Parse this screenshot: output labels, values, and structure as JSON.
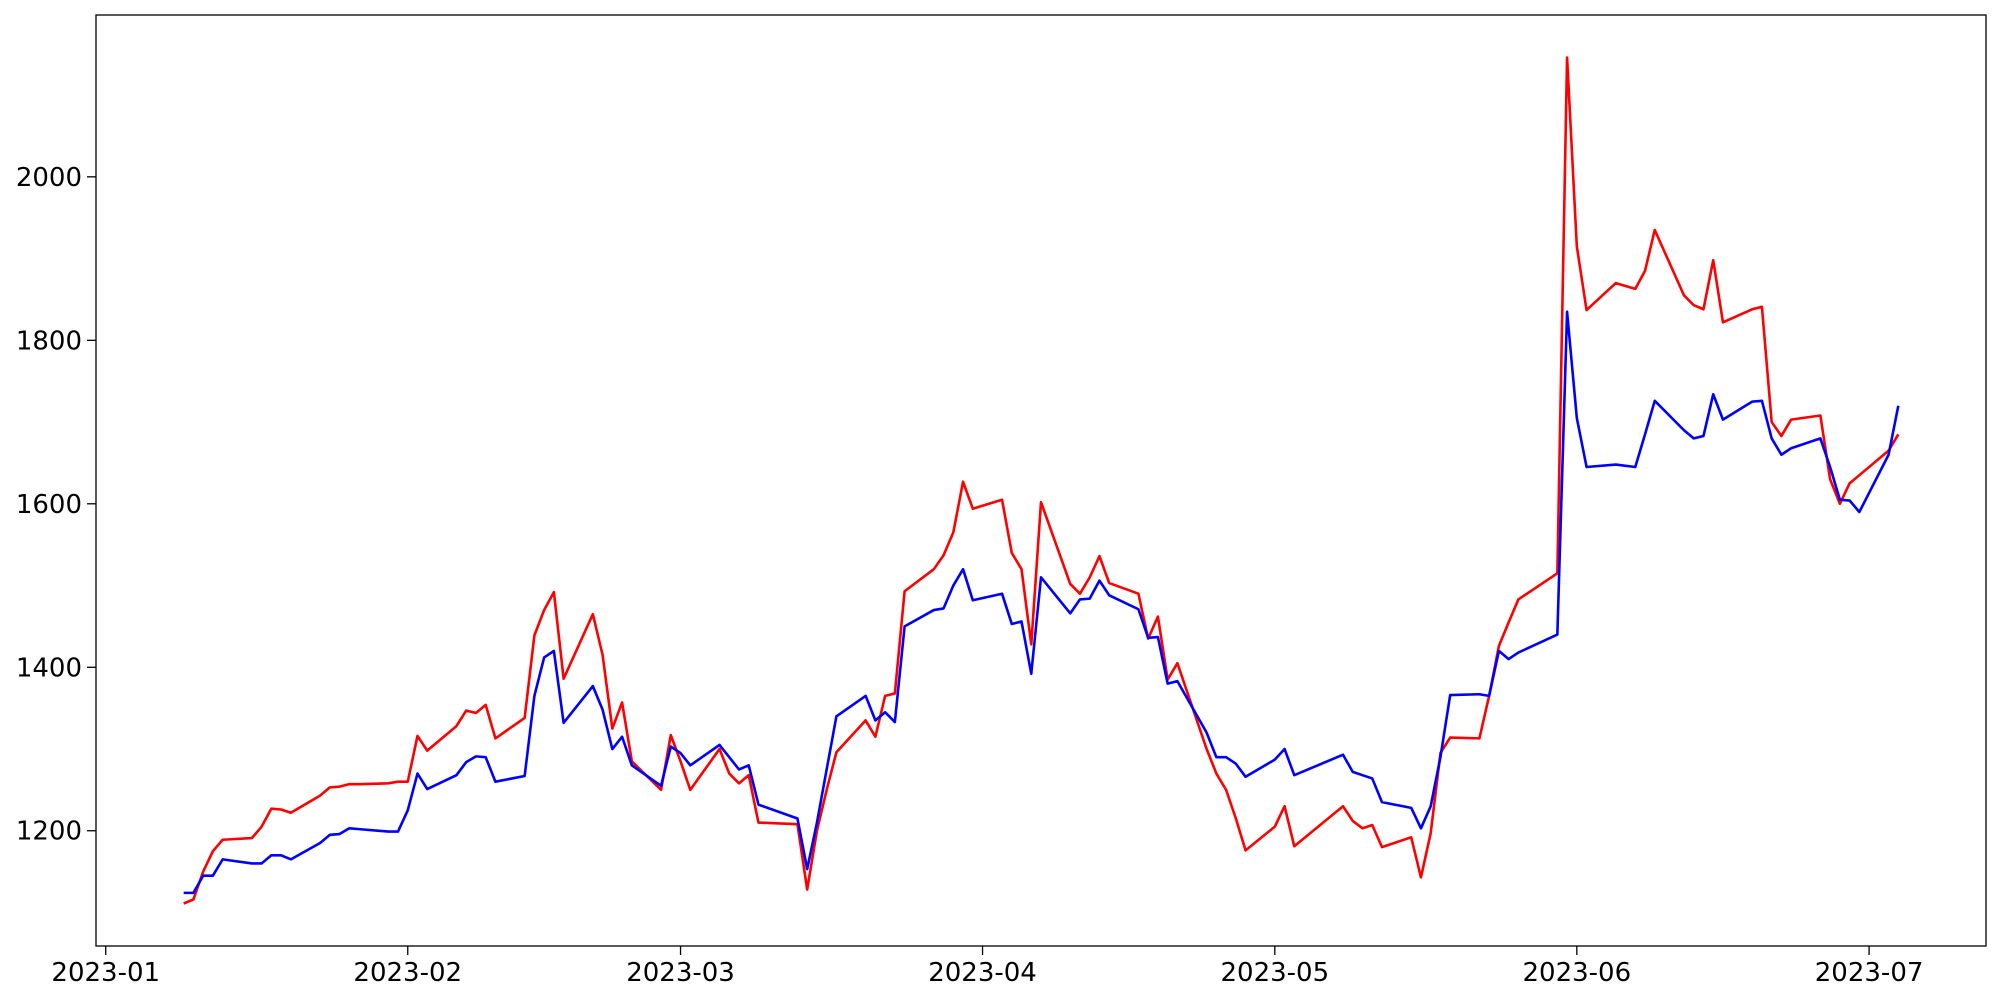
{
  "chart_data": {
    "type": "line",
    "x": [
      "2023-01-09",
      "2023-01-10",
      "2023-01-11",
      "2023-01-12",
      "2023-01-13",
      "2023-01-16",
      "2023-01-17",
      "2023-01-18",
      "2023-01-19",
      "2023-01-20",
      "2023-01-23",
      "2023-01-24",
      "2023-01-25",
      "2023-01-26",
      "2023-01-27",
      "2023-01-30",
      "2023-01-31",
      "2023-02-01",
      "2023-02-02",
      "2023-02-03",
      "2023-02-06",
      "2023-02-07",
      "2023-02-08",
      "2023-02-09",
      "2023-02-10",
      "2023-02-13",
      "2023-02-14",
      "2023-02-15",
      "2023-02-16",
      "2023-02-17",
      "2023-02-20",
      "2023-02-21",
      "2023-02-22",
      "2023-02-23",
      "2023-02-24",
      "2023-02-27",
      "2023-02-28",
      "2023-03-01",
      "2023-03-02",
      "2023-03-05",
      "2023-03-06",
      "2023-03-07",
      "2023-03-08",
      "2023-03-09",
      "2023-03-13",
      "2023-03-14",
      "2023-03-15",
      "2023-03-16",
      "2023-03-17",
      "2023-03-20",
      "2023-03-21",
      "2023-03-22",
      "2023-03-23",
      "2023-03-24",
      "2023-03-27",
      "2023-03-28",
      "2023-03-29",
      "2023-03-30",
      "2023-03-31",
      "2023-04-03",
      "2023-04-04",
      "2023-04-05",
      "2023-04-06",
      "2023-04-07",
      "2023-04-10",
      "2023-04-11",
      "2023-04-12",
      "2023-04-13",
      "2023-04-14",
      "2023-04-17",
      "2023-04-18",
      "2023-04-19",
      "2023-04-20",
      "2023-04-21",
      "2023-04-24",
      "2023-04-25",
      "2023-04-26",
      "2023-04-27",
      "2023-04-28",
      "2023-05-01",
      "2023-05-02",
      "2023-05-03",
      "2023-05-08",
      "2023-05-09",
      "2023-05-10",
      "2023-05-11",
      "2023-05-12",
      "2023-05-15",
      "2023-05-16",
      "2023-05-17",
      "2023-05-18",
      "2023-05-19",
      "2023-05-22",
      "2023-05-23",
      "2023-05-24",
      "2023-05-25",
      "2023-05-26",
      "2023-05-30",
      "2023-05-31",
      "2023-06-01",
      "2023-06-02",
      "2023-06-05",
      "2023-06-07",
      "2023-06-08",
      "2023-06-09",
      "2023-06-12",
      "2023-06-13",
      "2023-06-14",
      "2023-06-15",
      "2023-06-16",
      "2023-06-19",
      "2023-06-20",
      "2023-06-21",
      "2023-06-22",
      "2023-06-23",
      "2023-06-26",
      "2023-06-27",
      "2023-06-28",
      "2023-06-29",
      "2023-06-30",
      "2023-07-03",
      "2023-07-04"
    ],
    "series": [
      {
        "color": "#ff0000",
        "values": [
          1111,
          1116,
          1150,
          1175,
          1189,
          1191,
          1205,
          1227,
          1226,
          1222,
          1243,
          1253,
          1254,
          1257,
          1257,
          1258,
          1260,
          1260,
          1316,
          1298,
          1328,
          1347,
          1344,
          1354,
          1313,
          1338,
          1439,
          1470,
          1492,
          1386,
          1465,
          1415,
          1325,
          1357,
          1285,
          1250,
          1317,
          1285,
          1250,
          1300,
          1270,
          1258,
          1268,
          1210,
          1208,
          1128,
          1200,
          1250,
          1296,
          1335,
          1315,
          1365,
          1368,
          1493,
          1520,
          1537,
          1565,
          1627,
          1594,
          1605,
          1540,
          1520,
          1428,
          1602,
          1502,
          1490,
          1510,
          1536,
          1503,
          1490,
          1435,
          1462,
          1385,
          1405,
          1300,
          1270,
          1250,
          1215,
          1176,
          1205,
          1230,
          1181,
          1230,
          1212,
          1203,
          1207,
          1180,
          1192,
          1143,
          1197,
          1295,
          1314,
          1313,
          1365,
          1426,
          1455,
          1483,
          1515,
          2146,
          1915,
          1837,
          1870,
          1863,
          1885,
          1935,
          1855,
          1843,
          1838,
          1898,
          1822,
          1838,
          1841,
          1700,
          1683,
          1703,
          1708,
          1630,
          1600,
          1625,
          1635,
          1665,
          1685
        ]
      },
      {
        "color": "#0000ff",
        "values": [
          1124,
          1124,
          1145,
          1145,
          1165,
          1160,
          1160,
          1170,
          1170,
          1165,
          1185,
          1195,
          1196,
          1203,
          1202,
          1199,
          1199,
          1225,
          1270,
          1251,
          1268,
          1284,
          1291,
          1290,
          1260,
          1267,
          1365,
          1412,
          1420,
          1332,
          1377,
          1348,
          1300,
          1315,
          1280,
          1255,
          1303,
          1295,
          1280,
          1305,
          1290,
          1275,
          1280,
          1232,
          1215,
          1153,
          1210,
          1275,
          1340,
          1365,
          1335,
          1345,
          1333,
          1450,
          1470,
          1472,
          1500,
          1520,
          1482,
          1490,
          1453,
          1456,
          1392,
          1510,
          1466,
          1483,
          1484,
          1506,
          1488,
          1471,
          1436,
          1437,
          1380,
          1383,
          1320,
          1290,
          1290,
          1282,
          1266,
          1287,
          1300,
          1268,
          1293,
          1272,
          1268,
          1264,
          1235,
          1228,
          1203,
          1230,
          1290,
          1366,
          1367,
          1365,
          1420,
          1410,
          1418,
          1440,
          1835,
          1705,
          1645,
          1648,
          1645,
          1685,
          1726,
          1690,
          1680,
          1683,
          1734,
          1703,
          1725,
          1726,
          1680,
          1660,
          1668,
          1680,
          1645,
          1605,
          1604,
          1590,
          1660,
          1720
        ]
      }
    ],
    "xlim": [
      "2022-12-31",
      "2023-07-13"
    ],
    "xticks": [
      {
        "value": "2023-01-01",
        "label": "2023-01"
      },
      {
        "value": "2023-02-01",
        "label": "2023-02"
      },
      {
        "value": "2023-03-01",
        "label": "2023-03"
      },
      {
        "value": "2023-04-01",
        "label": "2023-04"
      },
      {
        "value": "2023-05-01",
        "label": "2023-05"
      },
      {
        "value": "2023-06-01",
        "label": "2023-06"
      },
      {
        "value": "2023-07-01",
        "label": "2023-07"
      }
    ],
    "ylim": [
      1059,
      2198
    ],
    "yticks": [
      1200,
      1400,
      1600,
      1800,
      2000
    ],
    "grid": false
  }
}
